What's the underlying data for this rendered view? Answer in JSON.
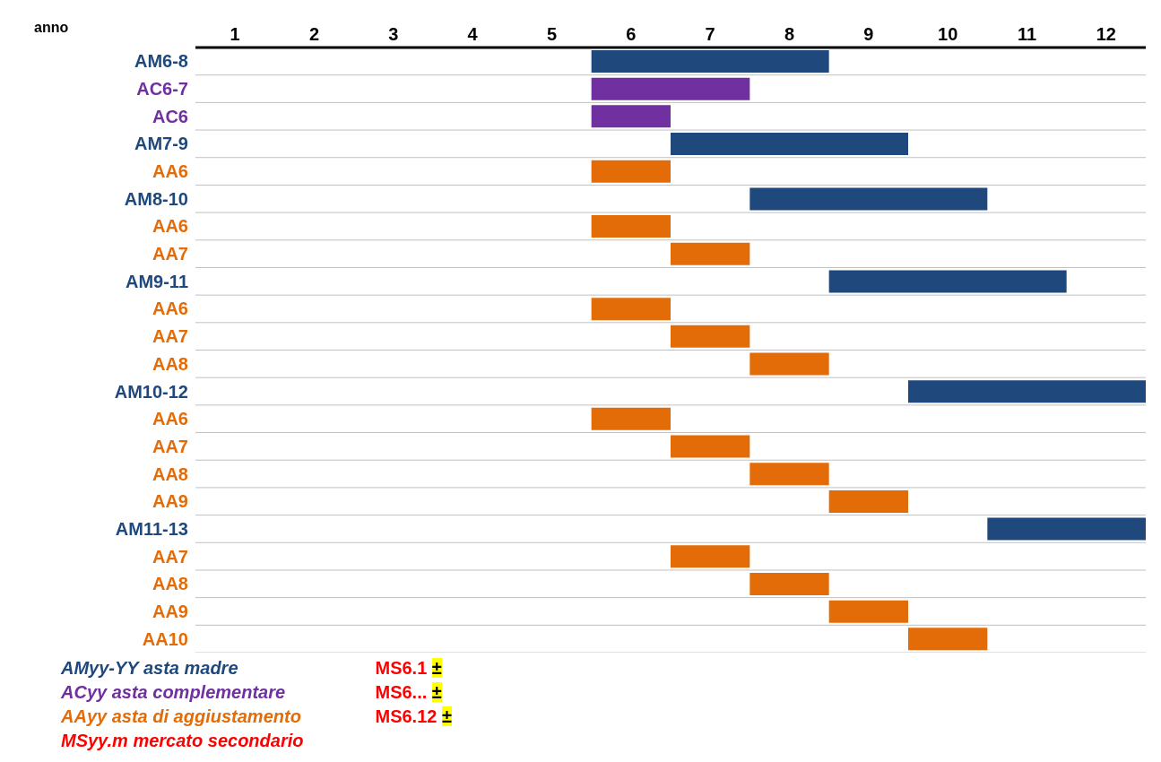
{
  "chart_data": {
    "type": "bar",
    "orientation": "horizontal",
    "xlabel": "anno",
    "categories": [
      "AM6-8",
      "AC6-7",
      "AC6",
      "AM7-9",
      "AA6",
      "AM8-10",
      "AA6",
      "AA7",
      "AM9-11",
      "AA6",
      "AA7",
      "AA8",
      "AM10-12",
      "AA6",
      "AA7",
      "AA8",
      "AA9",
      "AM11-13",
      "AA7",
      "AA8",
      "AA9",
      "AA10"
    ],
    "series": [
      {
        "name": "AMyy-YY asta madre",
        "color": "#1f497d",
        "values": [
          3,
          null,
          null,
          3,
          null,
          3,
          null,
          null,
          3,
          null,
          null,
          null,
          3,
          null,
          null,
          null,
          null,
          2,
          null,
          null,
          null,
          null
        ],
        "base": [
          5.5,
          null,
          null,
          6.5,
          null,
          7.5,
          null,
          null,
          8.5,
          null,
          null,
          null,
          9.5,
          null,
          null,
          null,
          null,
          10.5,
          null,
          null,
          null,
          null
        ]
      },
      {
        "name": "ACyy asta complementare",
        "color": "#7030a0",
        "values": [
          null,
          2,
          1,
          null,
          null,
          null,
          null,
          null,
          null,
          null,
          null,
          null,
          null,
          null,
          null,
          null,
          null,
          null,
          null,
          null,
          null,
          null
        ],
        "base": [
          null,
          5.5,
          5.5,
          null,
          null,
          null,
          null,
          null,
          null,
          null,
          null,
          null,
          null,
          null,
          null,
          null,
          null,
          null,
          null,
          null,
          null,
          null
        ]
      },
      {
        "name": "AAyy asta di aggiustamento",
        "color": "#e36c09",
        "values": [
          null,
          null,
          null,
          null,
          1,
          null,
          1,
          1,
          null,
          1,
          1,
          1,
          null,
          1,
          1,
          1,
          1,
          null,
          1,
          1,
          1,
          1
        ],
        "base": [
          null,
          null,
          null,
          null,
          5.5,
          null,
          5.5,
          6.5,
          null,
          5.5,
          6.5,
          7.5,
          null,
          5.5,
          6.5,
          7.5,
          8.5,
          null,
          6.5,
          7.5,
          8.5,
          9.5
        ]
      },
      {
        "name": "MSyy.m mercato secondario",
        "color": "#ff0000",
        "values": [
          null,
          null,
          null,
          null,
          null,
          null,
          null,
          null,
          null,
          null,
          null,
          null,
          null,
          null,
          null,
          null,
          null,
          null,
          null,
          null,
          null,
          null
        ]
      }
    ],
    "xlim": [
      0.5,
      12.5
    ],
    "xticks": [
      1,
      2,
      3,
      4,
      5,
      6,
      7,
      8,
      9,
      10,
      11,
      12
    ],
    "grid": "y",
    "legend": "bottom left",
    "annotations": [
      "MS6.1 ±",
      "MS6... ±",
      "MS6.12 ±"
    ]
  }
}
